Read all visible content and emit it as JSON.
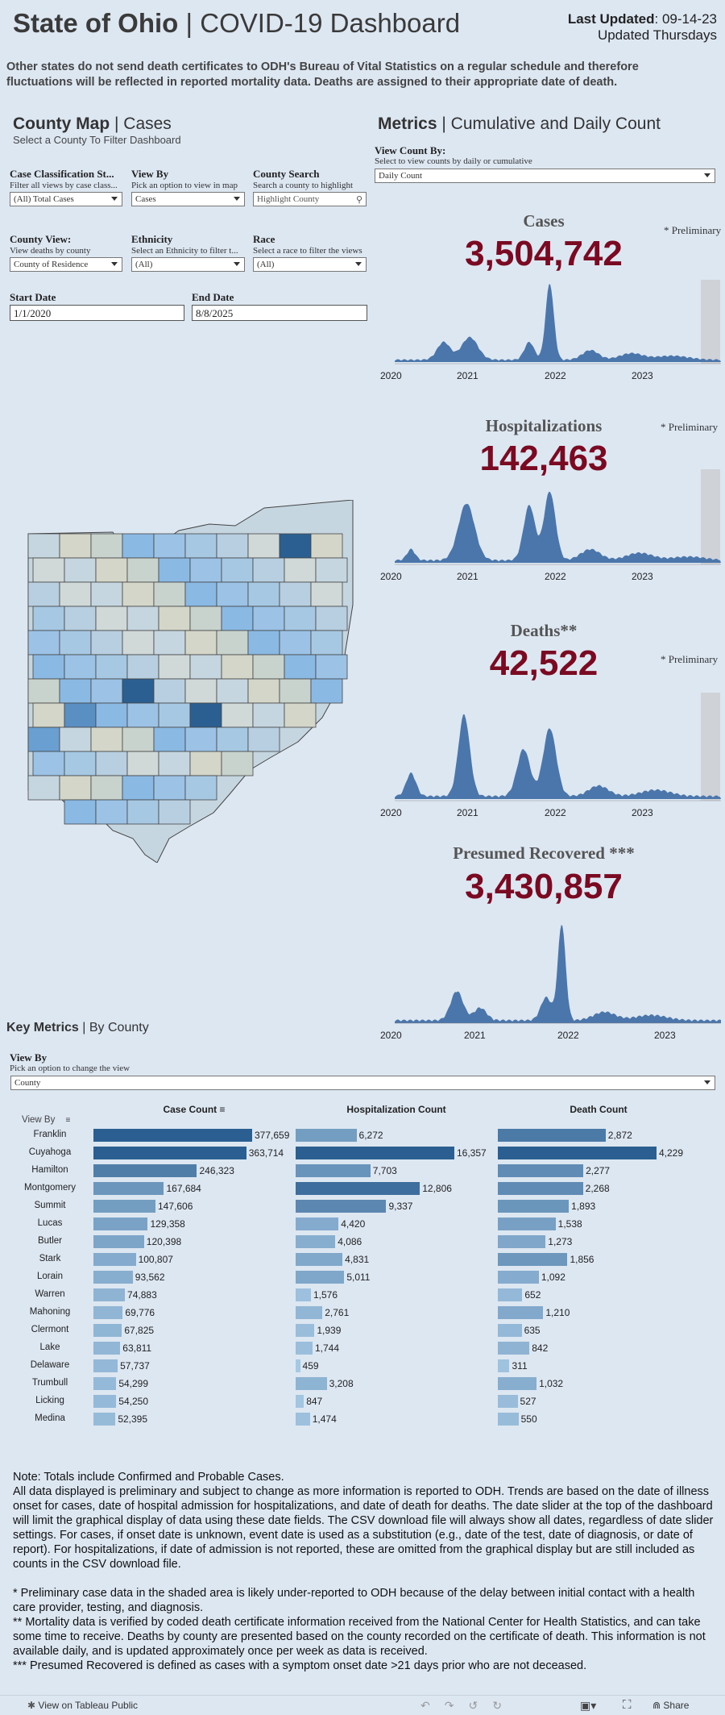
{
  "header": {
    "title_bold": "State of Ohio",
    "title_sep": " | ",
    "title_rest": "COVID-19 Dashboard",
    "last_updated_label": "Last Updated",
    "last_updated_value": ": 09-14-23",
    "update_schedule": "Updated Thursdays"
  },
  "warning": "Other states do not send death certificates to ODH's Bureau of Vital Statistics on a regular schedule and therefore fluctuations will be reflected in reported mortality data. Deaths are assigned to their appropriate date of death.",
  "county_map": {
    "heading_bold": "County Map",
    "heading_sep": " | ",
    "heading_rest": "Cases",
    "subtitle": "Select a County To Filter Dashboard"
  },
  "filters": {
    "case_classification": {
      "label": "Case Classification St...",
      "hint": "Filter all views by case class...",
      "value": "(All) Total Cases"
    },
    "view_by": {
      "label": "View By",
      "hint": "Pick an option to view in map",
      "value": "Cases"
    },
    "county_search": {
      "label": "County Search",
      "hint": "Search a county to highlight",
      "placeholder": "Highlight County"
    },
    "county_view": {
      "label": "County View:",
      "hint": "View deaths by county",
      "value": "County of Residence"
    },
    "ethnicity": {
      "label": "Ethnicity",
      "hint": "Select an Ethnicity to filter t...",
      "value": "(All)"
    },
    "race": {
      "label": "Race",
      "hint": "Select a race to filter the views",
      "value": "(All)"
    },
    "start_date": {
      "label": "Start Date",
      "value": "1/1/2020"
    },
    "end_date": {
      "label": "End Date",
      "value": "8/8/2025"
    }
  },
  "metrics_panel": {
    "heading_bold": "Metrics",
    "heading_sep": " | ",
    "heading_rest": "Cumulative and Daily Count",
    "view_count_label": "View Count By:",
    "view_count_hint": "Select to view counts by daily or cumulative",
    "view_count_value": "Daily Count",
    "cases": {
      "title": "Cases",
      "value": "3,504,742",
      "prelim": "* Preliminary"
    },
    "hospitalizations": {
      "title": "Hospitalizations",
      "value": "142,463",
      "prelim": "* Preliminary"
    },
    "deaths": {
      "title": "Deaths**",
      "value": "42,522",
      "prelim": "* Preliminary"
    },
    "recovered": {
      "title": "Presumed Recovered ***",
      "value": "3,430,857"
    },
    "year_labels": [
      "2020",
      "2021",
      "2022",
      "2023"
    ]
  },
  "key_metrics": {
    "heading_bold": "Key Metrics",
    "heading_sep": " | ",
    "heading_rest": "By County",
    "view_by_label": "View By",
    "view_by_hint": "Pick an option to change the view",
    "view_by_value": "County",
    "view_by_col": "View By",
    "col_cases": "Case Count",
    "col_hosp": "Hospitalization Count",
    "col_deaths": "Death Count",
    "rows": [
      {
        "county": "Franklin",
        "cases": "377,659",
        "hosp": "6,272",
        "deaths": "2,872"
      },
      {
        "county": "Cuyahoga",
        "cases": "363,714",
        "hosp": "16,357",
        "deaths": "4,229"
      },
      {
        "county": "Hamilton",
        "cases": "246,323",
        "hosp": "7,703",
        "deaths": "2,277"
      },
      {
        "county": "Montgomery",
        "cases": "167,684",
        "hosp": "12,806",
        "deaths": "2,268"
      },
      {
        "county": "Summit",
        "cases": "147,606",
        "hosp": "9,337",
        "deaths": "1,893"
      },
      {
        "county": "Lucas",
        "cases": "129,358",
        "hosp": "4,420",
        "deaths": "1,538"
      },
      {
        "county": "Butler",
        "cases": "120,398",
        "hosp": "4,086",
        "deaths": "1,273"
      },
      {
        "county": "Stark",
        "cases": "100,807",
        "hosp": "4,831",
        "deaths": "1,856"
      },
      {
        "county": "Lorain",
        "cases": "93,562",
        "hosp": "5,011",
        "deaths": "1,092"
      },
      {
        "county": "Warren",
        "cases": "74,883",
        "hosp": "1,576",
        "deaths": "652"
      },
      {
        "county": "Mahoning",
        "cases": "69,776",
        "hosp": "2,761",
        "deaths": "1,210"
      },
      {
        "county": "Clermont",
        "cases": "67,825",
        "hosp": "1,939",
        "deaths": "635"
      },
      {
        "county": "Lake",
        "cases": "63,811",
        "hosp": "1,744",
        "deaths": "842"
      },
      {
        "county": "Delaware",
        "cases": "57,737",
        "hosp": "459",
        "deaths": "311"
      },
      {
        "county": "Trumbull",
        "cases": "54,299",
        "hosp": "3,208",
        "deaths": "1,032"
      },
      {
        "county": "Licking",
        "cases": "54,250",
        "hosp": "847",
        "deaths": "527"
      },
      {
        "county": "Medina",
        "cases": "52,395",
        "hosp": "1,474",
        "deaths": "550"
      }
    ]
  },
  "notes": [
    "Note: Totals include Confirmed and Probable Cases.",
    "All data displayed is preliminary and subject to change as more information is reported to ODH. Trends are based on the date of illness onset for cases, date of hospital admission for hospitalizations, and date of death for deaths. The date slider at the top of the dashboard will limit the graphical display of data using these date fields. The CSV download file will always show all dates, regardless of date slider settings. For cases, if onset date is unknown, event date is used as a substitution (e.g., date of the test, date of diagnosis, or date of report). For hospitalizations, if date of admission is not reported, these are omitted from the graphical display but are still included as counts in the CSV download file.",
    "* Preliminary case data in the shaded area is likely under-reported to ODH because of the delay between initial contact with a health care provider, testing, and diagnosis.",
    "** Mortality data is verified by coded death certificate information received from the National Center for Health Statistics, and can take some time to receive. Deaths by county are presented based on the county recorded on the certificate of death. This information is not available daily, and is updated approximately once per week as data is received.",
    "*** Presumed Recovered is defined as cases with a symptom onset date >21 days prior who are not deceased."
  ],
  "footer": {
    "view_on_tableau": "View on Tableau Public",
    "share": "Share"
  },
  "colors": {
    "background": "#dde7f2",
    "accent_value": "#7a0a22",
    "bar_dark": "#2c5f91",
    "bar_light": "#a9cbe6",
    "timeline": "#4a76ab"
  }
}
